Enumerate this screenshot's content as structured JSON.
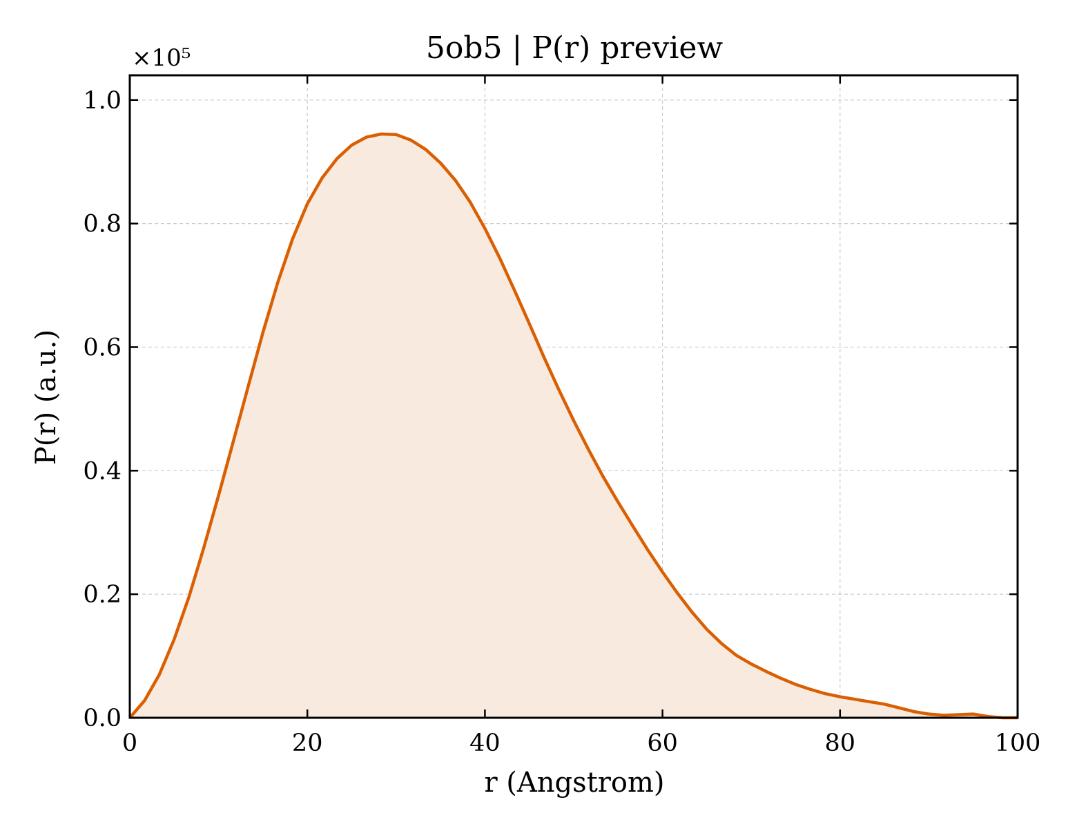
{
  "chart_data": {
    "type": "area",
    "title": "5ob5 | P(r) preview",
    "xlabel": "r (Angstrom)",
    "ylabel": "P(r) (a.u.)",
    "y_offset_label": "×10⁵",
    "xlim": [
      0,
      100
    ],
    "ylim": [
      0,
      1.04
    ],
    "xticks": [
      0,
      20,
      40,
      60,
      80,
      100
    ],
    "xtick_labels": [
      "0",
      "20",
      "40",
      "60",
      "80",
      "100"
    ],
    "yticks": [
      0,
      0.2,
      0.4,
      0.6,
      0.8,
      1.0
    ],
    "ytick_labels": [
      "0.0",
      "0.2",
      "0.4",
      "0.6",
      "0.8",
      "1.0"
    ],
    "grid": true,
    "line_color": "#d95f02",
    "fill_color": "#f9eadf",
    "series": [
      {
        "x": [
          0,
          1.67,
          3.33,
          5.0,
          6.67,
          8.33,
          10.0,
          11.67,
          13.33,
          15.0,
          16.67,
          18.33,
          20.0,
          21.67,
          23.33,
          25.0,
          26.67,
          28.33,
          30.0,
          31.67,
          33.33,
          35.0,
          36.67,
          38.33,
          40.0,
          41.67,
          43.33,
          45.0,
          46.67,
          48.33,
          50.0,
          51.67,
          53.33,
          55.0,
          56.67,
          58.33,
          60.0,
          61.67,
          63.33,
          65.0,
          66.67,
          68.33,
          70.0,
          71.67,
          73.33,
          75.0,
          76.67,
          78.33,
          80.0,
          81.67,
          83.33,
          85.0,
          86.67,
          88.33,
          90.0,
          91.67,
          93.33,
          95.0,
          96.67,
          98.33,
          100.0
        ],
        "values": [
          0.0,
          0.028,
          0.07,
          0.127,
          0.196,
          0.275,
          0.36,
          0.448,
          0.536,
          0.624,
          0.705,
          0.775,
          0.832,
          0.874,
          0.905,
          0.927,
          0.94,
          0.945,
          0.944,
          0.935,
          0.92,
          0.898,
          0.87,
          0.835,
          0.792,
          0.744,
          0.692,
          0.638,
          0.583,
          0.531,
          0.481,
          0.434,
          0.39,
          0.349,
          0.31,
          0.272,
          0.236,
          0.202,
          0.171,
          0.143,
          0.12,
          0.101,
          0.087,
          0.075,
          0.064,
          0.054,
          0.046,
          0.039,
          0.034,
          0.03,
          0.026,
          0.022,
          0.016,
          0.01,
          0.006,
          0.004,
          0.005,
          0.006,
          0.002,
          0.0,
          0.0
        ]
      }
    ]
  }
}
